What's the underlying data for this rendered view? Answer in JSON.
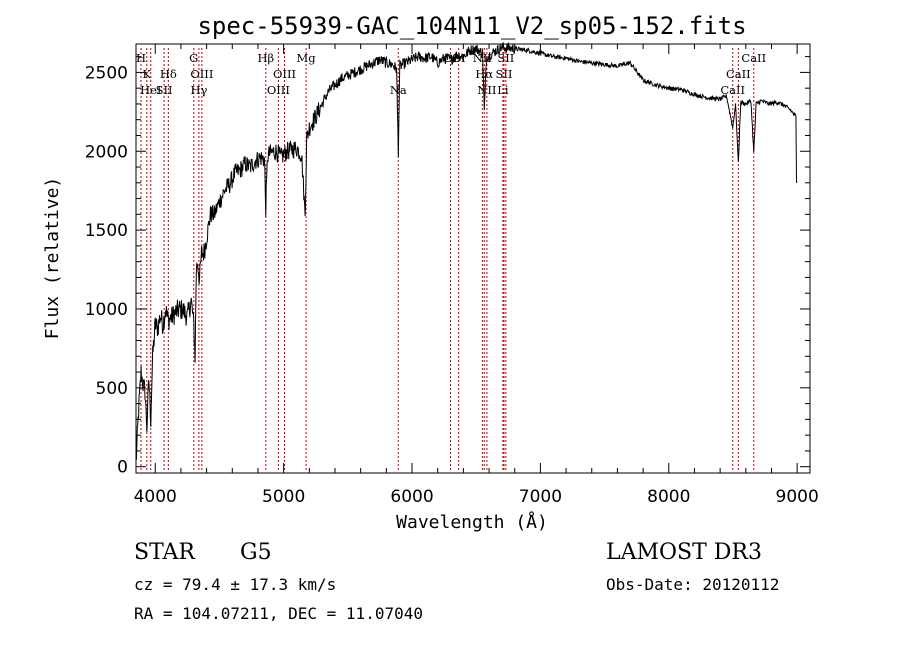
{
  "chart_data": {
    "type": "line",
    "title": "spec-55939-GAC_104N11_V2_sp05-152.fits",
    "xlabel": "Wavelength (Å)",
    "ylabel": "Flux (relative)",
    "xlim": [
      3850,
      9100
    ],
    "ylim": [
      -40,
      2680
    ],
    "xticks": [
      4000,
      5000,
      6000,
      7000,
      8000,
      9000
    ],
    "yticks": [
      0,
      500,
      1000,
      1500,
      2000,
      2500
    ],
    "spectrum": {
      "name": "flux",
      "x": [
        3850,
        3870,
        3890,
        3905,
        3920,
        3935,
        3950,
        3965,
        3980,
        4000,
        4020,
        4040,
        4060,
        4080,
        4100,
        4130,
        4160,
        4190,
        4220,
        4250,
        4280,
        4300,
        4310,
        4320,
        4330,
        4345,
        4360,
        4380,
        4400,
        4430,
        4460,
        4500,
        4540,
        4580,
        4620,
        4660,
        4700,
        4740,
        4780,
        4820,
        4850,
        4861,
        4875,
        4900,
        4940,
        4980,
        5000,
        5030,
        5060,
        5100,
        5140,
        5167,
        5180,
        5200,
        5250,
        5300,
        5350,
        5400,
        5450,
        5500,
        5550,
        5600,
        5650,
        5700,
        5750,
        5800,
        5850,
        5880,
        5893,
        5905,
        5950,
        6000,
        6050,
        6100,
        6150,
        6200,
        6250,
        6300,
        6350,
        6400,
        6450,
        6500,
        6550,
        6563,
        6580,
        6620,
        6700,
        6800,
        6900,
        7000,
        7100,
        7200,
        7300,
        7400,
        7500,
        7600,
        7700,
        7800,
        7900,
        8000,
        8100,
        8200,
        8300,
        8400,
        8450,
        8498,
        8520,
        8542,
        8560,
        8600,
        8640,
        8662,
        8680,
        8720,
        8780,
        8850,
        8900,
        8950,
        8990,
        8995,
        9000
      ],
      "y": [
        20,
        350,
        600,
        520,
        480,
        250,
        560,
        300,
        700,
        900,
        880,
        960,
        900,
        1000,
        930,
        950,
        980,
        1000,
        990,
        950,
        1050,
        900,
        700,
        1250,
        1300,
        1180,
        1350,
        1360,
        1450,
        1600,
        1600,
        1680,
        1750,
        1790,
        1860,
        1880,
        1920,
        1900,
        1940,
        1960,
        1950,
        1640,
        1970,
        1990,
        2000,
        1960,
        1980,
        2000,
        2010,
        2020,
        1980,
        1600,
        2080,
        2150,
        2220,
        2300,
        2380,
        2420,
        2460,
        2480,
        2500,
        2520,
        2540,
        2560,
        2580,
        2560,
        2550,
        2520,
        2000,
        2540,
        2560,
        2580,
        2600,
        2590,
        2600,
        2560,
        2590,
        2580,
        2610,
        2600,
        2640,
        2650,
        2620,
        2250,
        2600,
        2620,
        2660,
        2650,
        2640,
        2620,
        2600,
        2590,
        2570,
        2560,
        2550,
        2540,
        2560,
        2450,
        2420,
        2400,
        2390,
        2360,
        2340,
        2330,
        2350,
        2150,
        2300,
        1920,
        2310,
        2300,
        2320,
        1990,
        2300,
        2320,
        2300,
        2310,
        2290,
        2260,
        2220,
        1800,
        1800
      ]
    },
    "line_markers": [
      {
        "label": "H",
        "x": 3889,
        "row": 0
      },
      {
        "label": "K",
        "x": 3934,
        "row": 1
      },
      {
        "label": "HeI",
        "x": 3965,
        "row": 2
      },
      {
        "label": "SII",
        "x": 4069,
        "row": 2
      },
      {
        "label": "Hδ",
        "x": 4102,
        "row": 1
      },
      {
        "label": "G",
        "x": 4300,
        "row": 0
      },
      {
        "label": "OIII",
        "x": 4363,
        "row": 1
      },
      {
        "label": "Hγ",
        "x": 4340,
        "row": 2
      },
      {
        "label": "Hβ",
        "x": 4861,
        "row": 0
      },
      {
        "label": "OIII",
        "x": 5007,
        "row": 1
      },
      {
        "label": "OIII",
        "x": 4959,
        "row": 2
      },
      {
        "label": "Mg",
        "x": 5175,
        "row": 0
      },
      {
        "label": "Na",
        "x": 5893,
        "row": 2
      },
      {
        "label": "OI",
        "x": 6300,
        "row": 0
      },
      {
        "label": "OI",
        "x": 6363,
        "row": 0
      },
      {
        "label": "NII",
        "x": 6548,
        "row": 0
      },
      {
        "label": "NII",
        "x": 6583,
        "row": 2
      },
      {
        "label": "Hα",
        "x": 6563,
        "row": 1
      },
      {
        "label": "SII",
        "x": 6716,
        "row": 1
      },
      {
        "label": "SII",
        "x": 6731,
        "row": 0
      },
      {
        "label": "Li",
        "x": 6708,
        "row": 2
      },
      {
        "label": "CaII",
        "x": 8498,
        "row": 2
      },
      {
        "label": "CaII",
        "x": 8542,
        "row": 1
      },
      {
        "label": "CaII",
        "x": 8662,
        "row": 0
      }
    ]
  },
  "footer": {
    "object_class": "STAR",
    "subclass": "G5",
    "survey": "LAMOST DR3",
    "cz": "cz = 79.4 ± 17.3 km/s",
    "obs_date": "Obs-Date: 20120112",
    "coords": "RA = 104.07211, DEC =  11.07040"
  },
  "colors": {
    "axes": "#000000",
    "spectrum": "#000000",
    "marker_line": "#c00000",
    "background": "#ffffff"
  }
}
